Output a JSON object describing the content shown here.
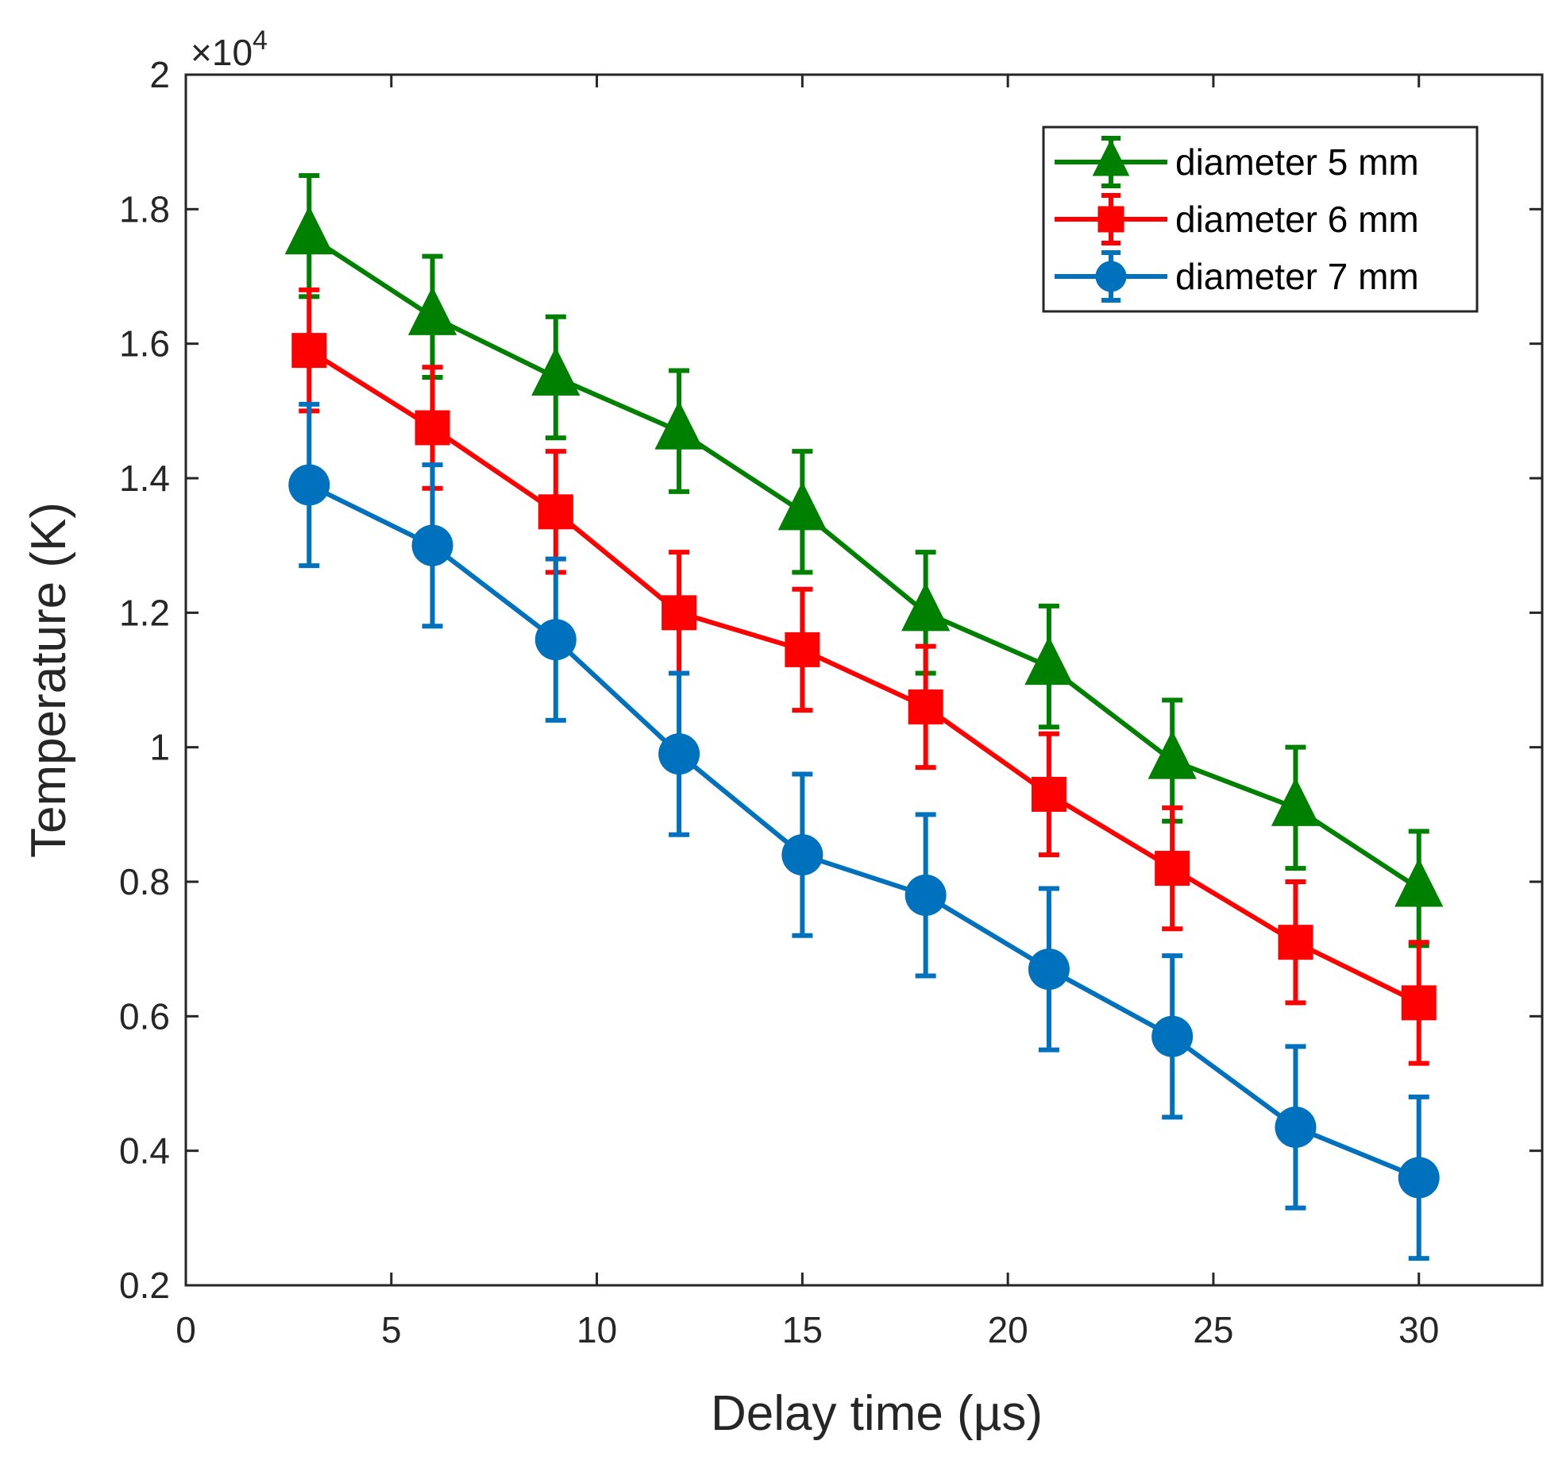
{
  "chart_data": {
    "type": "line",
    "title": "",
    "xlabel": "Delay time (µs)",
    "ylabel": "Temperature (K)",
    "xlim": [
      0,
      33
    ],
    "ylim": [
      0.2,
      2
    ],
    "y_multiplier_base": "×10",
    "y_multiplier_exponent": "4",
    "xticks": [
      0,
      5,
      10,
      15,
      20,
      25,
      30
    ],
    "xtick_labels": [
      "0",
      "5",
      "10",
      "15",
      "20",
      "25",
      "30"
    ],
    "yticks": [
      0.2,
      0.4,
      0.6,
      0.8,
      1.0,
      1.2,
      1.4,
      1.6,
      1.8,
      2.0
    ],
    "ytick_labels": [
      "0.2",
      "0.4",
      "0.6",
      "0.8",
      "1",
      "1.2",
      "1.4",
      "1.6",
      "1.8",
      "2"
    ],
    "legend_position": "top-right",
    "x": [
      3,
      6,
      9,
      12,
      15,
      18,
      21,
      24,
      27,
      30
    ],
    "series": [
      {
        "name": "diameter 5 mm",
        "color": "#008000",
        "marker": "triangle",
        "values": [
          1.76,
          1.64,
          1.55,
          1.47,
          1.35,
          1.2,
          1.12,
          0.98,
          0.91,
          0.79
        ],
        "errors": [
          0.09,
          0.09,
          0.09,
          0.09,
          0.09,
          0.09,
          0.09,
          0.09,
          0.09,
          0.085
        ]
      },
      {
        "name": "diameter 6 mm",
        "color": "#ff0000",
        "marker": "square",
        "values": [
          1.59,
          1.475,
          1.35,
          1.2,
          1.145,
          1.06,
          0.93,
          0.82,
          0.71,
          0.62
        ],
        "errors": [
          0.09,
          0.09,
          0.09,
          0.09,
          0.09,
          0.09,
          0.09,
          0.09,
          0.09,
          0.09
        ]
      },
      {
        "name": "diameter 7 mm",
        "color": "#0072bd",
        "marker": "circle",
        "values": [
          1.39,
          1.3,
          1.16,
          0.99,
          0.84,
          0.78,
          0.67,
          0.57,
          0.435,
          0.36
        ],
        "errors": [
          0.12,
          0.12,
          0.12,
          0.12,
          0.12,
          0.12,
          0.12,
          0.12,
          0.12,
          0.12
        ]
      }
    ]
  }
}
